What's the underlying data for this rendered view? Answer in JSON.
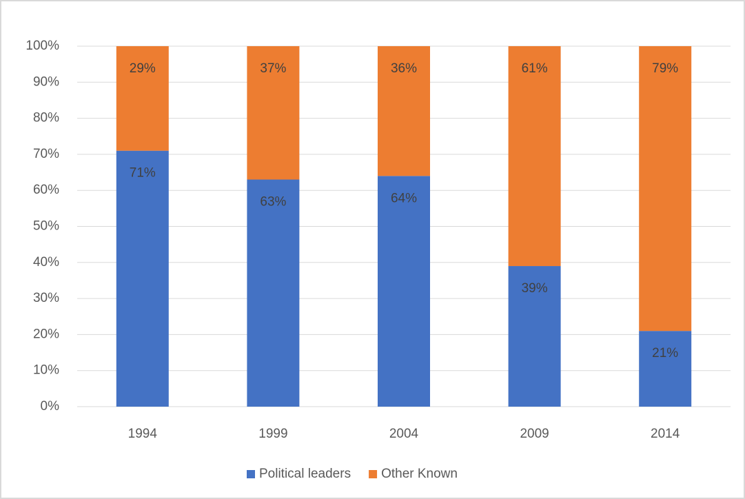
{
  "chart_data": {
    "type": "stacked_bar",
    "categories": [
      "1994",
      "1999",
      "2004",
      "2009",
      "2014"
    ],
    "series": [
      {
        "name": "Political leaders",
        "color": "#4472c4",
        "values": [
          71,
          63,
          64,
          39,
          21
        ],
        "value_labels": [
          "71%",
          "63%",
          "64%",
          "39%",
          "21%"
        ]
      },
      {
        "name": "Other Known",
        "color": "#ed7d31",
        "values": [
          29,
          37,
          36,
          61,
          79
        ],
        "value_labels": [
          "29%",
          "37%",
          "36%",
          "61%",
          "79%"
        ]
      }
    ],
    "ylim": [
      0,
      100
    ],
    "yticks": [
      {
        "value": 0,
        "label": "0%"
      },
      {
        "value": 10,
        "label": "10%"
      },
      {
        "value": 20,
        "label": "20%"
      },
      {
        "value": 30,
        "label": "30%"
      },
      {
        "value": 40,
        "label": "40%"
      },
      {
        "value": 50,
        "label": "50%"
      },
      {
        "value": 60,
        "label": "60%"
      },
      {
        "value": 70,
        "label": "70%"
      },
      {
        "value": 80,
        "label": "80%"
      },
      {
        "value": 90,
        "label": "90%"
      },
      {
        "value": 100,
        "label": "100%"
      }
    ],
    "grid": true,
    "legend": "bottom"
  }
}
